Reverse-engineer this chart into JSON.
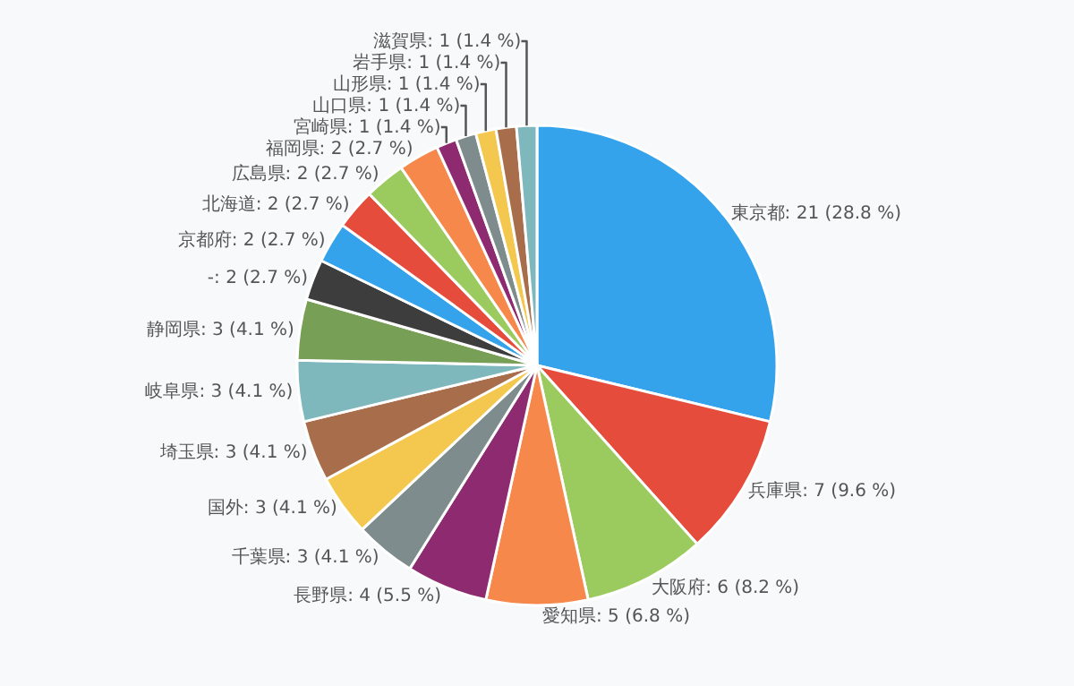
{
  "chart_data": {
    "type": "pie",
    "categories": [
      "東京都",
      "兵庫県",
      "大阪府",
      "愛知県",
      "長野県",
      "千葉県",
      "国外",
      "埼玉県",
      "岐阜県",
      "静岡県",
      "-",
      "京都府",
      "北海道",
      "広島県",
      "福岡県",
      "宮崎県",
      "山口県",
      "山形県",
      "岩手県",
      "滋賀県"
    ],
    "values": [
      21,
      7,
      6,
      5,
      4,
      3,
      3,
      3,
      3,
      3,
      2,
      2,
      2,
      2,
      2,
      1,
      1,
      1,
      1,
      1
    ],
    "value_labels": [
      "21 (28.8 %)",
      "7 (9.6 %)",
      "6 (8.2 %)",
      "5 (6.8 %)",
      "4 (5.5 %)",
      "3 (4.1 %)",
      "3 (4.1 %)",
      "3 (4.1 %)",
      "3 (4.1 %)",
      "3 (4.1 %)",
      "2 (2.7 %)",
      "2 (2.7 %)",
      "2 (2.7 %)",
      "2 (2.7 %)",
      "2 (2.7 %)",
      "1 (1.4 %)",
      "1 (1.4 %)",
      "1 (1.4 %)",
      "1 (1.4 %)",
      "1 (1.4 %)"
    ],
    "colors": [
      "#35a2ec",
      "#e64c3c",
      "#9bcb5e",
      "#f5884a",
      "#8e2a6f",
      "#7f8c8d",
      "#f4c84e",
      "#a86e4b",
      "#7fb8bc",
      "#779f55",
      "#3d3d3d",
      "#35a2ec",
      "#e64c3c",
      "#9bcb5e",
      "#f5884a",
      "#8e2a6f",
      "#7f8c8d",
      "#f4c84e",
      "#a86e4b",
      "#7fb8bc"
    ]
  }
}
